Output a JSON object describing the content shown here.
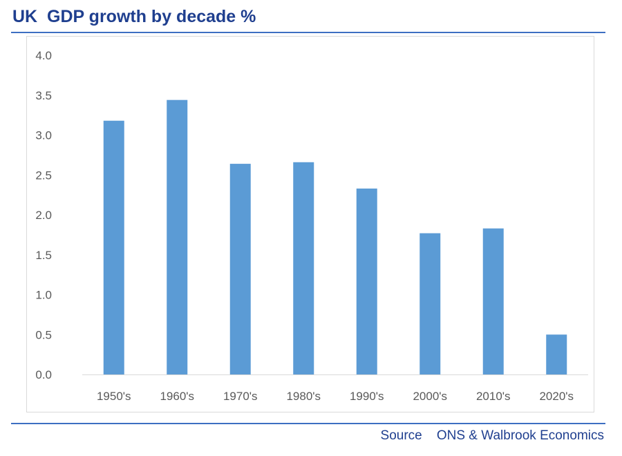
{
  "title": "UK  GDP growth by decade %",
  "source": {
    "label": "Source",
    "text": "ONS & Walbrook Economics"
  },
  "colors": {
    "title": "#1f3f8f",
    "rule": "#3d6fc2",
    "bar": "#5b9bd5",
    "axis_text": "#595959",
    "axis_line": "#d9d9d9"
  },
  "chart_data": {
    "type": "bar",
    "categories": [
      "1950's",
      "1960's",
      "1970's",
      "1980's",
      "1990's",
      "2000's",
      "2010's",
      "2020's"
    ],
    "values": [
      3.18,
      3.44,
      2.64,
      2.66,
      2.33,
      1.77,
      1.83,
      0.5
    ],
    "y_ticks": [
      "0.0",
      "0.5",
      "1.0",
      "1.5",
      "2.0",
      "2.5",
      "3.0",
      "3.5",
      "4.0"
    ],
    "ylim": [
      0,
      4.0
    ],
    "grid": false,
    "legend": "none"
  }
}
